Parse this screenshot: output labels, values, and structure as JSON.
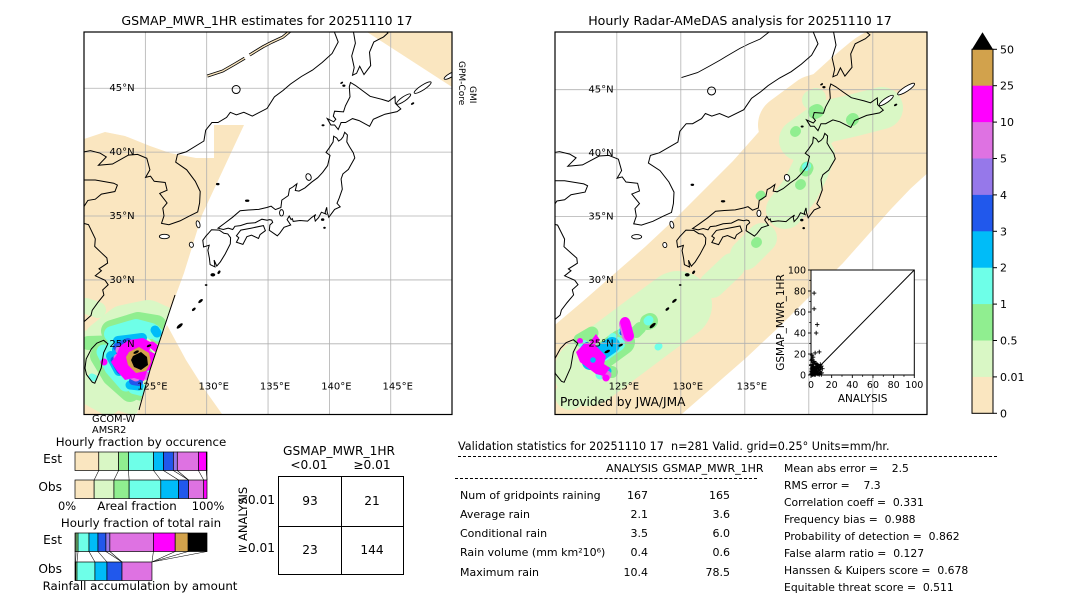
{
  "left_map": {
    "title": "GSMAP_MWR_1HR estimates for 20251110 17",
    "side_label_top": "GPM-Core",
    "side_label_bottom": "GMI",
    "bottom_label_top": "GCOM-W",
    "bottom_label_bottom": "AMSR2",
    "lat_labels": [
      "45°N",
      "40°N",
      "35°N",
      "30°N",
      "25°N"
    ],
    "lon_labels": [
      "125°E",
      "130°E",
      "135°E",
      "140°E",
      "145°E"
    ]
  },
  "right_map": {
    "title": "Hourly Radar-AMeDAS analysis for 20251110 17",
    "credit": "Provided by JWA/JMA",
    "lat_labels": [
      "45°N",
      "40°N",
      "35°N",
      "30°N",
      "25°N"
    ],
    "lon_labels": [
      "125°E",
      "130°E",
      "135°E"
    ]
  },
  "colorbar": {
    "tick_labels": [
      "50",
      "25",
      "10",
      "5",
      "4",
      "3",
      "2",
      "1",
      "0.5",
      "0.01",
      "0"
    ]
  },
  "occurrence_chart": {
    "title": "Hourly fraction by occurence",
    "row_labels": [
      "Est",
      "Obs"
    ],
    "axis_left": "0%",
    "axis_label": "Areal fraction",
    "axis_right": "100%"
  },
  "totalrain_chart": {
    "title": "Hourly fraction of total rain",
    "row_labels": [
      "Est",
      "Obs"
    ],
    "caption": "Rainfall accumulation by amount"
  },
  "contingency": {
    "title": "GSMAP_MWR_1HR",
    "col_labels": [
      "<0.01",
      "≥0.01"
    ],
    "row_axis_label": "ANALYSIS",
    "row_labels": [
      "<0.01",
      "≥0.01"
    ],
    "values": [
      [
        "93",
        "21"
      ],
      [
        "23",
        "144"
      ]
    ]
  },
  "validation": {
    "title": "Validation statistics for 20251110 17  n=281 Valid. grid=0.25° Units=mm/hr.",
    "col_headers": [
      "ANALYSIS",
      "GSMAP_MWR_1HR"
    ],
    "rows": [
      {
        "label": "Num of gridpoints raining",
        "analysis": "167",
        "gsmap": "165"
      },
      {
        "label": "Average rain",
        "analysis": "2.1",
        "gsmap": "3.6"
      },
      {
        "label": "Conditional rain",
        "analysis": "3.5",
        "gsmap": "6.0"
      },
      {
        "label": "Rain volume (mm km²10⁶)",
        "analysis": "0.4",
        "gsmap": "0.6"
      },
      {
        "label": "Maximum rain",
        "analysis": "10.4",
        "gsmap": "78.5"
      }
    ],
    "stats": [
      {
        "label": "Mean abs error",
        "value": "2.5"
      },
      {
        "label": "RMS error",
        "value": "7.3"
      },
      {
        "label": "Correlation coeff",
        "value": "0.331"
      },
      {
        "label": "Frequency bias",
        "value": "0.988"
      },
      {
        "label": "Probability of detection",
        "value": "0.862"
      },
      {
        "label": "False alarm ratio",
        "value": "0.127"
      },
      {
        "label": "Hanssen & Kuipers score",
        "value": "0.678"
      },
      {
        "label": "Equitable threat score",
        "value": "0.511"
      }
    ]
  },
  "chart_data": [
    {
      "type": "heatmap",
      "name": "left_map_precipitation",
      "title": "GSMAP_MWR_1HR estimates for 20251110 17",
      "units": "mm/hr",
      "lon_range": [
        120,
        150
      ],
      "lat_range": [
        19.5,
        49.5
      ],
      "sensors": [
        "GPM-Core GMI",
        "GCOM-W AMSR2"
      ],
      "max_value": 78.5,
      "description": "Satellite microwave swath estimate; heavy rain cluster with >50 mm/hr core near Taiwan around 24-25N"
    },
    {
      "type": "heatmap",
      "name": "right_map_precipitation",
      "title": "Hourly Radar-AMeDAS analysis for 20251110 17",
      "units": "mm/hr",
      "lon_range": [
        120,
        150
      ],
      "lat_range": [
        19.5,
        49.5
      ],
      "credit": "Provided by JWA/JMA",
      "max_value": 10.4,
      "description": "Radar analysis; light rain band from Taiwan northeast along Japan to Hokkaido with 10-25 mm/hr cores near Taiwan"
    },
    {
      "type": "colorbar",
      "units": "mm/hr",
      "levels": [
        0,
        0.01,
        0.5,
        1,
        2,
        3,
        4,
        5,
        10,
        25,
        50
      ],
      "colors_low_to_high": [
        "#FAE6C0",
        "#D9F7C5",
        "#90EE90",
        "#6EFFE8",
        "#00BCF8",
        "#2158EC",
        "#9678EA",
        "#DE72E2",
        "#FF00FF",
        "#D2A24C"
      ],
      "over_color": "#000000"
    },
    {
      "type": "scatter",
      "name": "inset_scatter",
      "xlabel": "ANALYSIS",
      "ylabel": "GSMAP_MWR_1HR",
      "xlim": [
        0,
        100
      ],
      "ylim": [
        0,
        100
      ],
      "diagonal_line": true,
      "marker": "+",
      "points": [
        [
          3,
          78
        ],
        [
          3,
          63
        ],
        [
          6,
          48
        ],
        [
          5,
          40
        ],
        [
          8,
          22
        ],
        [
          4,
          21
        ],
        [
          1,
          19
        ],
        [
          2,
          17
        ],
        [
          1,
          15
        ],
        [
          0.5,
          14
        ],
        [
          3,
          13
        ],
        [
          2,
          12
        ],
        [
          5,
          11
        ],
        [
          9,
          10
        ],
        [
          4,
          11
        ],
        [
          1.5,
          10
        ],
        [
          10,
          8.5
        ],
        [
          0.2,
          9
        ],
        [
          7,
          9
        ],
        [
          2.5,
          8
        ],
        [
          5,
          8
        ],
        [
          8,
          7.5
        ],
        [
          1.2,
          7.5
        ],
        [
          3.8,
          7
        ],
        [
          6,
          10
        ],
        [
          0.8,
          6
        ],
        [
          11,
          6
        ],
        [
          2,
          6.5
        ],
        [
          6,
          6.5
        ],
        [
          3,
          6
        ],
        [
          9,
          5
        ],
        [
          4.5,
          5.5
        ],
        [
          1.8,
          5
        ],
        [
          7,
          4.5
        ],
        [
          2.5,
          4
        ],
        [
          4,
          3
        ],
        [
          5.5,
          3.5
        ],
        [
          0.5,
          3.5
        ],
        [
          8.5,
          3
        ],
        [
          10.5,
          2
        ],
        [
          2,
          2.5
        ],
        [
          4.8,
          2.2
        ],
        [
          3.2,
          2
        ],
        [
          9.5,
          1.8
        ],
        [
          1.5,
          1.5
        ],
        [
          5.8,
          1.5
        ],
        [
          2.8,
          1.2
        ],
        [
          4.2,
          1
        ],
        [
          7.5,
          1
        ],
        [
          1,
          0.5
        ],
        [
          3.5,
          0.5
        ],
        [
          2.2,
          0.8
        ],
        [
          6.5,
          2.8
        ],
        [
          0.3,
          0.4
        ],
        [
          1.2,
          3
        ],
        [
          0.8,
          2
        ],
        [
          5,
          2.5
        ],
        [
          6,
          1
        ],
        [
          8,
          0.5
        ],
        [
          0.5,
          1
        ],
        [
          1.8,
          0.3
        ],
        [
          4,
          0.2
        ],
        [
          2.6,
          5.5
        ],
        [
          3.4,
          4.2
        ],
        [
          5.2,
          6.8
        ],
        [
          0.9,
          4.8
        ],
        [
          7.8,
          5.8
        ],
        [
          6.8,
          8
        ],
        [
          9.2,
          7
        ]
      ]
    },
    {
      "type": "bar",
      "name": "hourly_fraction_by_occurrence",
      "title": "Hourly fraction by occurence",
      "stacked": true,
      "orientation": "horizontal",
      "xlabel": "Areal fraction",
      "xlim_labels": [
        "0%",
        "100%"
      ],
      "categories": [
        "0-0.01",
        "0.01-0.5",
        "0.5-1",
        "1-2",
        "2-3",
        "3-4",
        "4-5",
        "5-10",
        "10-25",
        "25-50",
        ">50"
      ],
      "series": [
        {
          "name": "Est",
          "values": [
            18,
            15,
            7.5,
            19,
            7.5,
            7.5,
            3,
            16,
            6,
            0,
            0.5
          ]
        },
        {
          "name": "Obs",
          "values": [
            14.5,
            15,
            11.5,
            24,
            13.5,
            7.5,
            0,
            11.5,
            2.5,
            0,
            0
          ]
        }
      ]
    },
    {
      "type": "bar",
      "name": "hourly_fraction_of_total_rain",
      "title": "Hourly fraction of total rain",
      "stacked": true,
      "orientation": "horizontal",
      "xlabel": "Rainfall accumulation by amount",
      "categories": [
        "0-0.01",
        "0.01-0.5",
        "0.5-1",
        "1-2",
        "2-3",
        "3-4",
        "4-5",
        "5-10",
        "10-25",
        "25-50",
        ">50"
      ],
      "series": [
        {
          "name": "Est",
          "values": [
            0,
            0.8,
            1.5,
            8.3,
            6.8,
            6,
            3,
            33,
            16.5,
            9.8,
            14.3
          ]
        },
        {
          "name": "Obs",
          "values": [
            0,
            0.5,
            1,
            13.6,
            9.1,
            11.4,
            0,
            22.7,
            0,
            0,
            0
          ]
        }
      ]
    },
    {
      "type": "table",
      "name": "contingency_table",
      "title": "GSMAP_MWR_1HR vs ANALYSIS",
      "col_labels": [
        "<0.01",
        "≥0.01"
      ],
      "row_labels": [
        "<0.01",
        "≥0.01"
      ],
      "values": [
        [
          93,
          21
        ],
        [
          23,
          144
        ]
      ]
    },
    {
      "type": "table",
      "name": "validation_statistics",
      "columns": [
        "ANALYSIS",
        "GSMAP_MWR_1HR"
      ],
      "rows": [
        [
          "Num of gridpoints raining",
          167,
          165
        ],
        [
          "Average rain",
          2.1,
          3.6
        ],
        [
          "Conditional rain",
          3.5,
          6.0
        ],
        [
          "Rain volume (mm km²10⁶)",
          0.4,
          0.6
        ],
        [
          "Maximum rain",
          10.4,
          78.5
        ]
      ],
      "scores": {
        "Mean abs error": 2.5,
        "RMS error": 7.3,
        "Correlation coeff": 0.331,
        "Frequency bias": 0.988,
        "Probability of detection": 0.862,
        "False alarm ratio": 0.127,
        "Hanssen & Kuipers score": 0.678,
        "Equitable threat score": 0.511
      }
    }
  ]
}
